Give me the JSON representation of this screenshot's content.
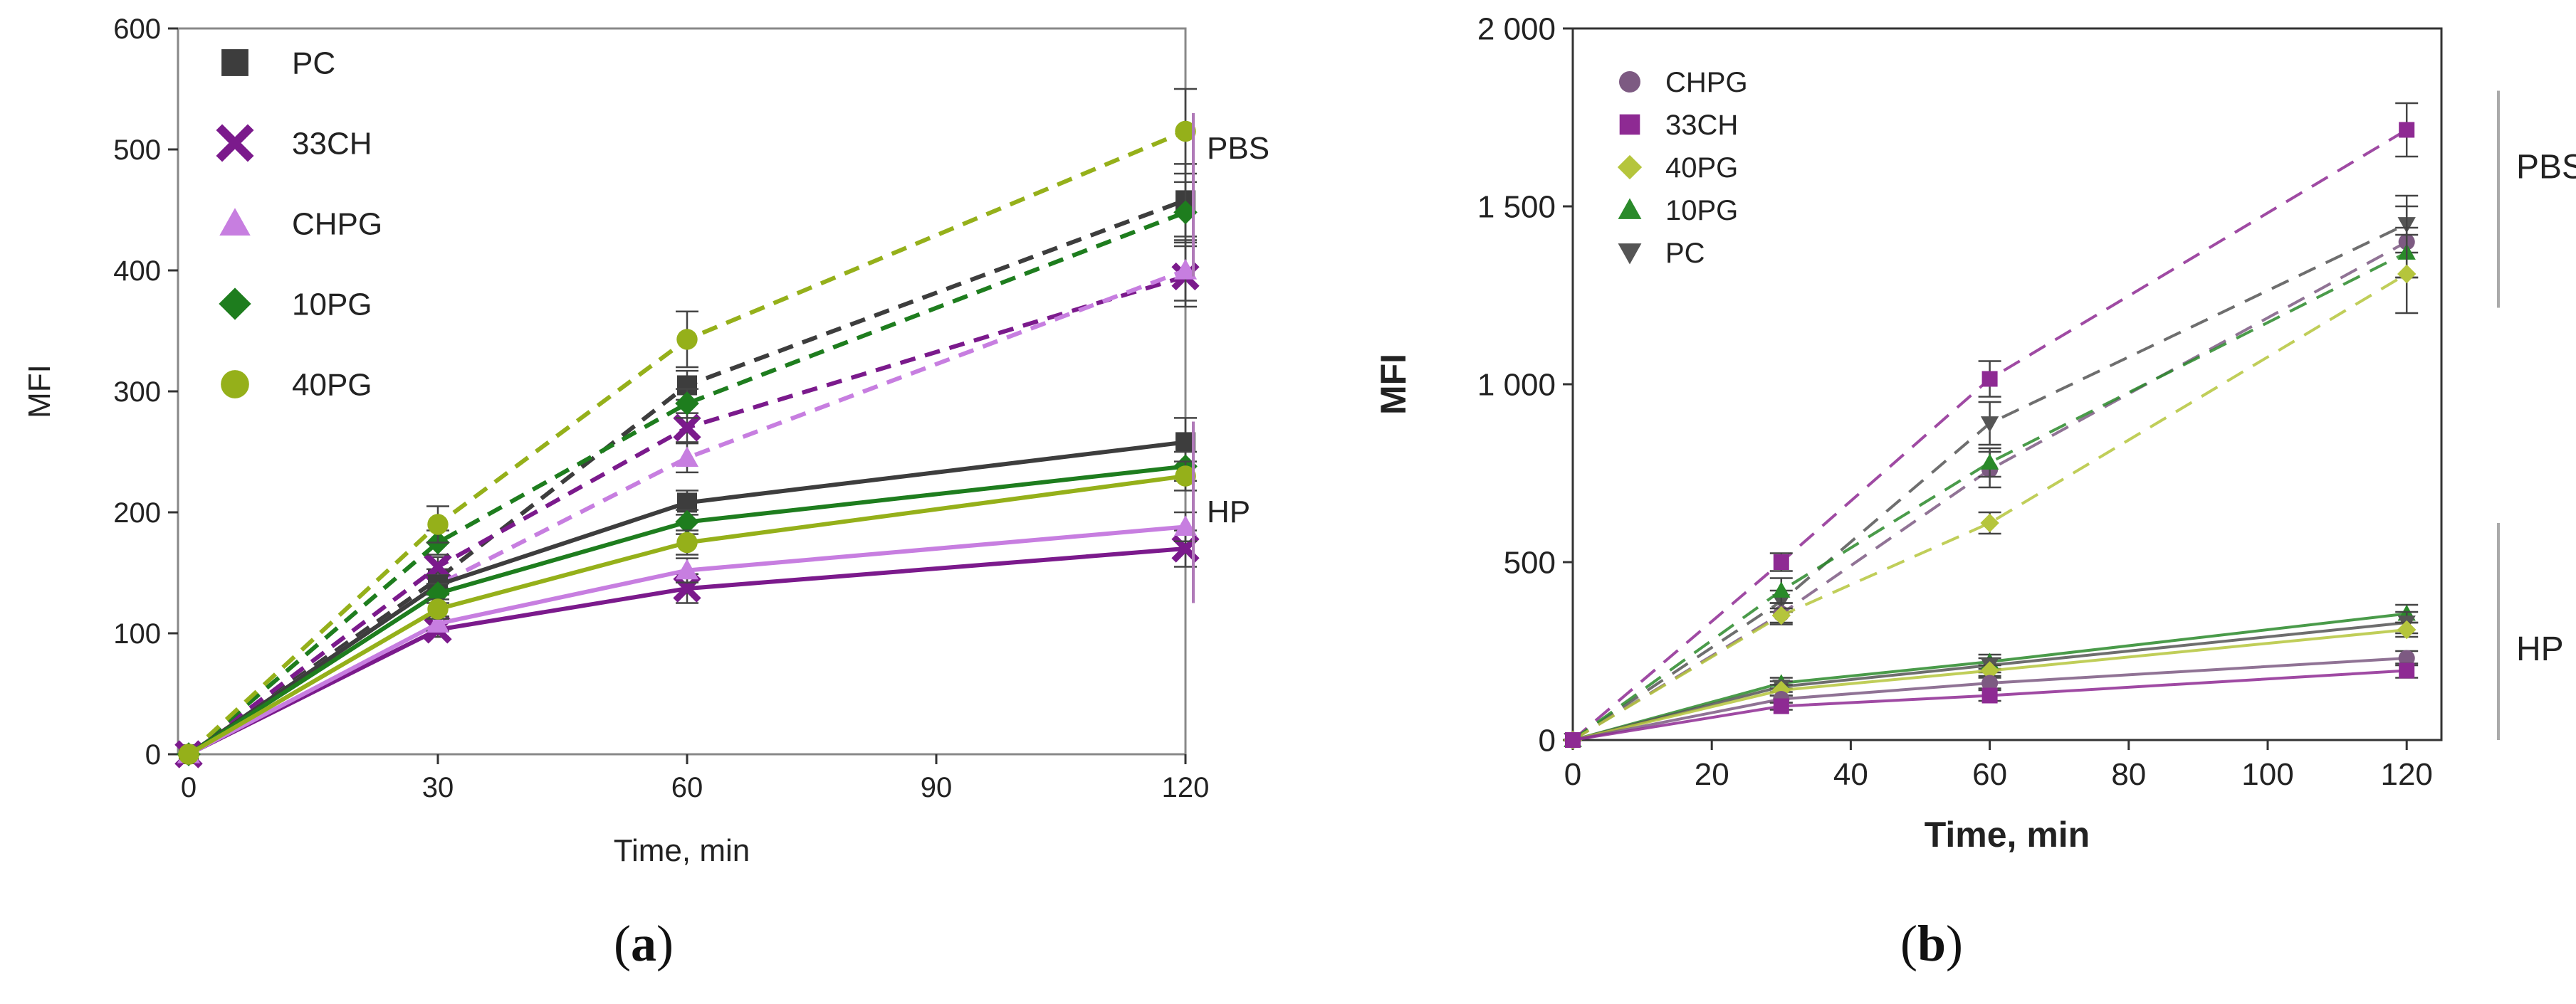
{
  "chart_data": [
    {
      "type": "line",
      "panel_label_prefix": "(",
      "panel_label_letter": "a",
      "panel_label_suffix": ")",
      "xlabel": "Time, min",
      "ylabel": "MFI",
      "xlim": [
        0,
        120
      ],
      "ylim": [
        0,
        600
      ],
      "xticks": [
        0,
        30,
        60,
        90,
        120
      ],
      "xtick_labels": [
        "0",
        "30",
        "60",
        "90",
        "120"
      ],
      "yticks": [
        0,
        100,
        200,
        300,
        400,
        500,
        600
      ],
      "ytick_labels": [
        "0",
        "100",
        "200",
        "300",
        "400",
        "500",
        "600"
      ],
      "legend": [
        {
          "name": "PC",
          "color": "#3d3d3d",
          "marker": "square"
        },
        {
          "name": "33CH",
          "color": "#7b1a8c",
          "marker": "x"
        },
        {
          "name": "CHPG",
          "color": "#c77ee0",
          "marker": "triangle"
        },
        {
          "name": "10PG",
          "color": "#1e7d1e",
          "marker": "diamond"
        },
        {
          "name": "40PG",
          "color": "#95b01a",
          "marker": "circle"
        }
      ],
      "legend_position": "top-left",
      "brackets": [
        {
          "label": "PBS",
          "from": 395,
          "to": 530
        },
        {
          "label": "HP",
          "from": 125,
          "to": 275
        }
      ],
      "x": [
        0,
        30,
        60,
        120
      ],
      "series": [
        {
          "name": "PC",
          "condition": "PBS",
          "style": "dashed",
          "color": "#3d3d3d",
          "marker": "square",
          "values": [
            0,
            145,
            305,
            458
          ],
          "errors": [
            0,
            8,
            12,
            30
          ]
        },
        {
          "name": "33CH",
          "condition": "PBS",
          "style": "dashed",
          "color": "#7b1a8c",
          "marker": "x",
          "values": [
            0,
            155,
            270,
            395
          ],
          "errors": [
            0,
            8,
            12,
            25
          ]
        },
        {
          "name": "CHPG",
          "condition": "PBS",
          "style": "dashed",
          "color": "#c77ee0",
          "marker": "triangle",
          "values": [
            0,
            140,
            245,
            400
          ],
          "errors": [
            0,
            8,
            12,
            25
          ]
        },
        {
          "name": "10PG",
          "condition": "PBS",
          "style": "dashed",
          "color": "#1e7d1e",
          "marker": "diamond",
          "values": [
            0,
            175,
            290,
            448
          ],
          "errors": [
            0,
            10,
            12,
            25
          ]
        },
        {
          "name": "40PG",
          "condition": "PBS",
          "style": "dashed",
          "color": "#95b01a",
          "marker": "circle",
          "values": [
            0,
            190,
            343,
            515
          ],
          "errors": [
            0,
            15,
            23,
            35
          ]
        },
        {
          "name": "PC",
          "condition": "HP",
          "style": "solid",
          "color": "#3d3d3d",
          "marker": "square",
          "values": [
            0,
            140,
            208,
            258
          ],
          "errors": [
            0,
            8,
            10,
            20
          ]
        },
        {
          "name": "33CH",
          "condition": "HP",
          "style": "solid",
          "color": "#7b1a8c",
          "marker": "x",
          "values": [
            0,
            103,
            137,
            170
          ],
          "errors": [
            0,
            6,
            12,
            15
          ]
        },
        {
          "name": "CHPG",
          "condition": "HP",
          "style": "solid",
          "color": "#c77ee0",
          "marker": "triangle",
          "values": [
            0,
            108,
            152,
            188
          ],
          "errors": [
            0,
            6,
            10,
            12
          ]
        },
        {
          "name": "10PG",
          "condition": "HP",
          "style": "solid",
          "color": "#1e7d1e",
          "marker": "diamond",
          "values": [
            0,
            133,
            192,
            238
          ],
          "errors": [
            0,
            8,
            10,
            12
          ]
        },
        {
          "name": "40PG",
          "condition": "HP",
          "style": "solid",
          "color": "#95b01a",
          "marker": "circle",
          "values": [
            0,
            120,
            175,
            230
          ],
          "errors": [
            0,
            8,
            10,
            12
          ]
        }
      ]
    },
    {
      "type": "line",
      "panel_label_prefix": "(",
      "panel_label_letter": "b",
      "panel_label_suffix": ")",
      "xlabel": "Time, min",
      "ylabel": "MFI",
      "xlim": [
        0,
        125
      ],
      "ylim": [
        0,
        2000
      ],
      "xticks": [
        0,
        20,
        40,
        60,
        80,
        100,
        120
      ],
      "xtick_labels": [
        "0",
        "20",
        "40",
        "60",
        "80",
        "100",
        "120"
      ],
      "yticks": [
        0,
        500,
        1000,
        1500,
        2000
      ],
      "ytick_labels": [
        "0",
        "500",
        "1 000",
        "1 500",
        "2 000"
      ],
      "legend": [
        {
          "name": "CHPG",
          "color": "#7d5a82",
          "marker": "circle"
        },
        {
          "name": "33CH",
          "color": "#8e2a93",
          "marker": "square"
        },
        {
          "name": "40PG",
          "color": "#b5c53c",
          "marker": "diamond"
        },
        {
          "name": "10PG",
          "color": "#2a8a2a",
          "marker": "triangle"
        },
        {
          "name": "PC",
          "color": "#555555",
          "marker": "triangle-down"
        }
      ],
      "legend_position": "top-left",
      "brackets": [
        {
          "label": "PBS",
          "from": 1215,
          "to": 1825
        },
        {
          "label": "HP",
          "from": 0,
          "to": 610
        }
      ],
      "x": [
        0,
        30,
        60,
        120
      ],
      "series": [
        {
          "name": "33CH",
          "condition": "PBS",
          "style": "dashed",
          "color": "#8e2a93",
          "marker": "square",
          "values": [
            0,
            500,
            1015,
            1715
          ],
          "errors": [
            0,
            25,
            50,
            75
          ]
        },
        {
          "name": "PC",
          "condition": "PBS",
          "style": "dashed",
          "color": "#555555",
          "marker": "triangle-down",
          "values": [
            0,
            390,
            890,
            1450
          ],
          "errors": [
            0,
            30,
            60,
            80
          ]
        },
        {
          "name": "CHPG",
          "condition": "PBS",
          "style": "dashed",
          "color": "#7d5a82",
          "marker": "circle",
          "values": [
            0,
            355,
            760,
            1400
          ],
          "errors": [
            0,
            30,
            50,
            100
          ]
        },
        {
          "name": "10PG",
          "condition": "PBS",
          "style": "dashed",
          "color": "#2a8a2a",
          "marker": "triangle",
          "values": [
            0,
            420,
            780,
            1370
          ],
          "errors": [
            0,
            35,
            40,
            70
          ]
        },
        {
          "name": "40PG",
          "condition": "PBS",
          "style": "dashed",
          "color": "#b5c53c",
          "marker": "diamond",
          "values": [
            0,
            350,
            610,
            1310
          ],
          "errors": [
            0,
            20,
            30,
            110
          ]
        },
        {
          "name": "10PG",
          "condition": "HP",
          "style": "solid",
          "color": "#2a8a2a",
          "marker": "triangle",
          "values": [
            0,
            160,
            220,
            355
          ],
          "errors": [
            0,
            15,
            20,
            25
          ]
        },
        {
          "name": "PC",
          "condition": "HP",
          "style": "solid",
          "color": "#555555",
          "marker": "triangle-down",
          "values": [
            0,
            150,
            210,
            330
          ],
          "errors": [
            0,
            15,
            20,
            30
          ]
        },
        {
          "name": "40PG",
          "condition": "HP",
          "style": "solid",
          "color": "#b5c53c",
          "marker": "diamond",
          "values": [
            0,
            140,
            195,
            310
          ],
          "errors": [
            0,
            15,
            15,
            20
          ]
        },
        {
          "name": "CHPG",
          "condition": "HP",
          "style": "solid",
          "color": "#7d5a82",
          "marker": "circle",
          "values": [
            0,
            115,
            160,
            230
          ],
          "errors": [
            0,
            10,
            15,
            20
          ]
        },
        {
          "name": "33CH",
          "condition": "HP",
          "style": "solid",
          "color": "#8e2a93",
          "marker": "square",
          "values": [
            0,
            95,
            125,
            195
          ],
          "errors": [
            0,
            10,
            15,
            20
          ]
        }
      ]
    }
  ]
}
